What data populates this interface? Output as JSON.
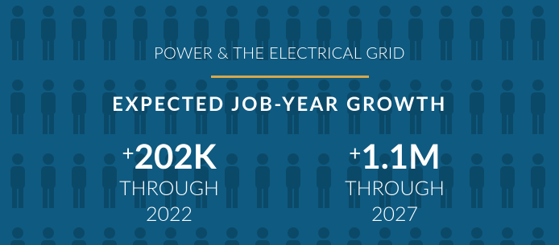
{
  "header": {
    "title": "POWER & THE ELECTRICAL GRID",
    "subtitle": "EXPECTED JOB-YEAR GROWTH"
  },
  "stats": [
    {
      "sign": "+",
      "figure": "202K",
      "label": "THROUGH",
      "year": "2022"
    },
    {
      "sign": "+",
      "figure": "1.1M",
      "label": "THROUGH",
      "year": "2027"
    }
  ]
}
